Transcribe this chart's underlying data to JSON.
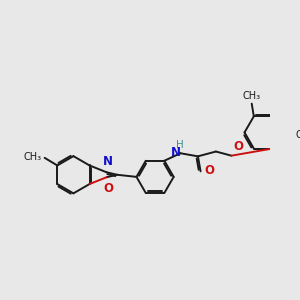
{
  "bg_color": "#e8e8e8",
  "bond_color": "#1a1a1a",
  "N_color": "#1010cc",
  "O_color": "#cc1010",
  "NH_color": "#409090",
  "font_size": 8.5,
  "bond_width": 1.4,
  "dbo": 0.038,
  "xlim": [
    -0.3,
    5.2
  ],
  "ylim": [
    -1.8,
    2.2
  ],
  "ring_r": 0.44
}
